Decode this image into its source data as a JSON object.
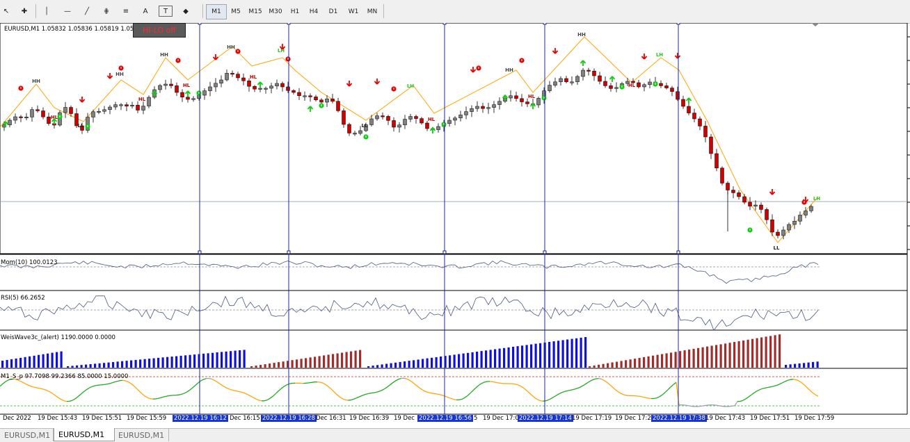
{
  "toolbar": {
    "tools": [
      {
        "name": "cursor-icon",
        "glyph": "↖"
      },
      {
        "name": "crosshair-icon",
        "glyph": "✚"
      },
      {
        "name": "vertical-line-icon",
        "glyph": "│"
      },
      {
        "name": "horizontal-line-icon",
        "glyph": "—"
      },
      {
        "name": "trendline-icon",
        "glyph": "╱"
      },
      {
        "name": "equidistant-channel-icon",
        "glyph": "⋕"
      },
      {
        "name": "fibonacci-icon",
        "glyph": "≡"
      },
      {
        "name": "text-icon",
        "glyph": "A"
      },
      {
        "name": "text-label-icon",
        "glyph": "T"
      },
      {
        "name": "shapes-dropdown-icon",
        "glyph": "◆"
      }
    ],
    "timeframes": [
      "M1",
      "M5",
      "M15",
      "M30",
      "H1",
      "H4",
      "D1",
      "W1",
      "MN"
    ],
    "active_timeframe": "M1"
  },
  "chart": {
    "symbol_info": "EURUSD,M1  1.05832 1.05836 1.05819 1.05830",
    "hilo_button": "HI-LO off",
    "panels": [
      {
        "label": "Mom(10) 100.0123"
      },
      {
        "label": "RSI(5) 66.2652"
      },
      {
        "label": "WeisWave3c_(alert) 1190.0000 0.0000"
      },
      {
        "label": "M1_S_p 97.7098 99.2366 85.0000 15.0000"
      }
    ],
    "swing_labels": {
      "hh": "HH",
      "hl": "HL",
      "ll": "LL",
      "lh": "LH"
    },
    "time_labels": [
      {
        "text": "Dec 2022",
        "highlight": false
      },
      {
        "text": "19 Dec 15:43",
        "highlight": false
      },
      {
        "text": "19 Dec 15:51",
        "highlight": false
      },
      {
        "text": "19 Dec 15:59",
        "highlight": false
      },
      {
        "text": "2022.12.19 16:12",
        "highlight": true
      },
      {
        "text": "Dec 16:15",
        "highlight": false
      },
      {
        "text": "2022.12.19 16:28",
        "highlight": true
      },
      {
        "text": "Dec 16:31",
        "highlight": false
      },
      {
        "text": "19 Dec 16:39",
        "highlight": false
      },
      {
        "text": "19 Dec",
        "highlight": false
      },
      {
        "text": "2022.12.19 16:56",
        "highlight": true
      },
      {
        "text": "5",
        "highlight": false
      },
      {
        "text": "19 Dec 17:0",
        "highlight": false
      },
      {
        "text": "2022.12.19 17:14",
        "highlight": true
      },
      {
        "text": "19 Dec 17:19",
        "highlight": false
      },
      {
        "text": "19 Dec 17:2",
        "highlight": false
      },
      {
        "text": "2022.12.19 17:38",
        "highlight": true
      },
      {
        "text": "19 Dec 17:43",
        "highlight": false
      },
      {
        "text": "19 Dec 17:51",
        "highlight": false
      },
      {
        "text": "19 Dec 17:59",
        "highlight": false
      }
    ]
  },
  "tabs": [
    {
      "label": "EURUSD,M1",
      "active": false
    },
    {
      "label": "EURUSD,M1",
      "active": true
    },
    {
      "label": "EURUSD,M1",
      "active": false
    }
  ],
  "colors": {
    "bull": "#808080",
    "bear": "#d10000",
    "zigzag": "#ffa500",
    "vline": "#1c2a8f",
    "wave_up": "#1010dd",
    "wave_down": "#a52a2a",
    "stoch_up": "#22aa22",
    "stoch_down": "#ffa500"
  }
}
